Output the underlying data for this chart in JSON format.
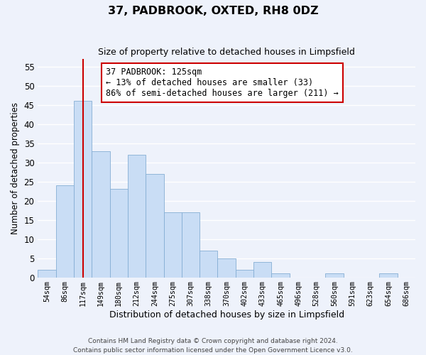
{
  "title": "37, PADBROOK, OXTED, RH8 0DZ",
  "subtitle": "Size of property relative to detached houses in Limpsfield",
  "xlabel": "Distribution of detached houses by size in Limpsfield",
  "ylabel": "Number of detached properties",
  "bin_labels": [
    "54sqm",
    "86sqm",
    "117sqm",
    "149sqm",
    "180sqm",
    "212sqm",
    "244sqm",
    "275sqm",
    "307sqm",
    "338sqm",
    "370sqm",
    "402sqm",
    "433sqm",
    "465sqm",
    "496sqm",
    "528sqm",
    "560sqm",
    "591sqm",
    "623sqm",
    "654sqm",
    "686sqm"
  ],
  "bar_heights": [
    2,
    24,
    46,
    33,
    23,
    32,
    27,
    17,
    17,
    7,
    5,
    2,
    4,
    1,
    0,
    0,
    1,
    0,
    0,
    1,
    0
  ],
  "bar_color": "#c9ddf5",
  "bar_edge_color": "#85aed4",
  "highlight_line_index": 2,
  "highlight_line_color": "#cc0000",
  "annotation_text_line1": "37 PADBROOK: 125sqm",
  "annotation_text_line2": "← 13% of detached houses are smaller (33)",
  "annotation_text_line3": "86% of semi-detached houses are larger (211) →",
  "annotation_box_color": "white",
  "annotation_box_edge_color": "#cc0000",
  "ylim": [
    0,
    57
  ],
  "yticks": [
    0,
    5,
    10,
    15,
    20,
    25,
    30,
    35,
    40,
    45,
    50,
    55
  ],
  "footer_line1": "Contains HM Land Registry data © Crown copyright and database right 2024.",
  "footer_line2": "Contains public sector information licensed under the Open Government Licence v3.0.",
  "bg_color": "#eef2fb"
}
